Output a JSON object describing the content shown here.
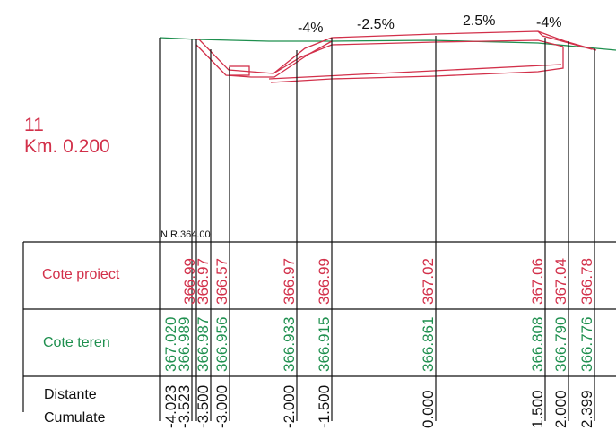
{
  "section": {
    "number": "11",
    "km_label": "Km. 0.200"
  },
  "slopes": [
    "-4%",
    "-2.5%",
    "2.5%",
    "-4%"
  ],
  "reference_level": "N.R.364.00",
  "rows": {
    "cote_proiect": "Cote proiect",
    "cote_teren": "Cote teren",
    "distante": "Distante",
    "cumulate": "Cumulate"
  },
  "colors": {
    "design": "#d2304a",
    "terrain": "#1e8f4e",
    "ink": "#111111"
  },
  "stations": [
    {
      "distance": "-4.023",
      "teren": "367.020",
      "proiect": ""
    },
    {
      "distance": "-3.523",
      "teren": "366.989",
      "proiect": "366.99"
    },
    {
      "distance": "-3.500",
      "teren": "366.987",
      "proiect": "366.97"
    },
    {
      "distance": "-3.000",
      "teren": "366.956",
      "proiect": "366.57"
    },
    {
      "distance": "-2.000",
      "teren": "366.933",
      "proiect": "366.97"
    },
    {
      "distance": "-1.500",
      "teren": "366.915",
      "proiect": "366.99"
    },
    {
      "distance": "0.000",
      "teren": "366.861",
      "proiect": "367.02"
    },
    {
      "distance": "1.500",
      "teren": "366.808",
      "proiect": "367.06"
    },
    {
      "distance": "2.000",
      "teren": "366.790",
      "proiect": "367.04"
    },
    {
      "distance": "2.399",
      "teren": "366.776",
      "proiect": "366.78"
    }
  ]
}
